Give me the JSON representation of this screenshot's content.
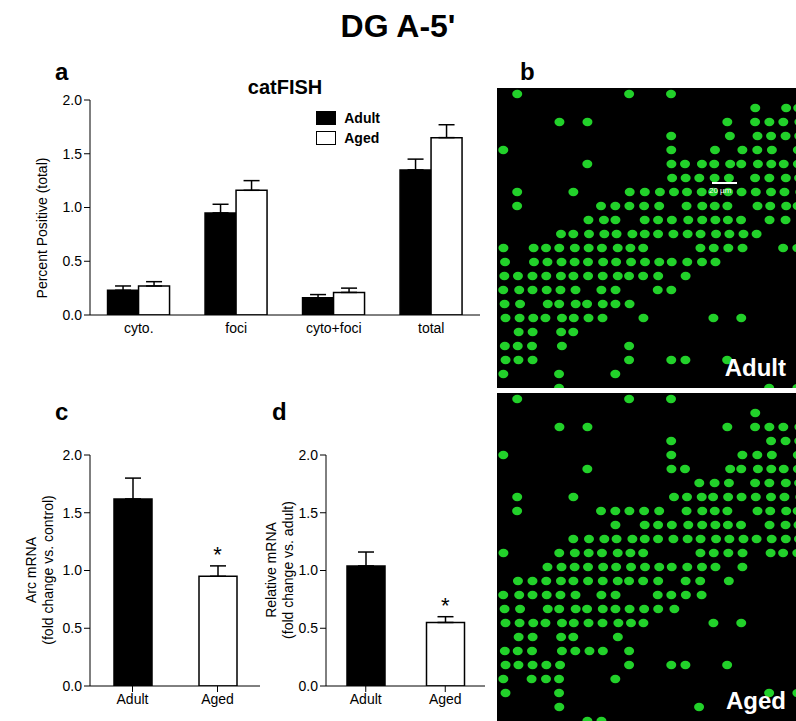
{
  "title": "DG A-5'",
  "chart_data": [
    {
      "panel": "a",
      "type": "bar",
      "title": "catFISH",
      "ylabel": "Percent Positive (total)",
      "categories": [
        "cyto.",
        "foci",
        "cyto+foci",
        "total"
      ],
      "series": [
        {
          "name": "Adult",
          "color": "#000000",
          "values": [
            0.23,
            0.95,
            0.16,
            1.35
          ],
          "errors": [
            0.04,
            0.08,
            0.03,
            0.1
          ]
        },
        {
          "name": "Aged",
          "color": "#ffffff",
          "values": [
            0.27,
            1.16,
            0.21,
            1.65
          ],
          "errors": [
            0.04,
            0.09,
            0.04,
            0.12
          ]
        }
      ],
      "ylim": [
        0,
        2
      ],
      "yticks": [
        {
          "value": 0,
          "label": "0.0"
        },
        {
          "value": 0.5,
          "label": "0.5"
        },
        {
          "value": 1,
          "label": "1.0"
        },
        {
          "value": 1.5,
          "label": "1.5"
        },
        {
          "value": 2,
          "label": "2.0"
        }
      ],
      "legend": "top right"
    },
    {
      "panel": "c",
      "type": "bar",
      "ylabel": "Arc mRNA\n(fold change vs. control)",
      "categories": [
        "Adult",
        "Aged"
      ],
      "values": [
        1.62,
        0.95
      ],
      "errors": [
        0.18,
        0.09
      ],
      "colors": [
        "#000000",
        "#ffffff"
      ],
      "ylim": [
        0,
        2
      ],
      "yticks": [
        {
          "value": 0,
          "label": "0.0"
        },
        {
          "value": 0.5,
          "label": "0.5"
        },
        {
          "value": 1,
          "label": "1.0"
        },
        {
          "value": 1.5,
          "label": "1.5"
        },
        {
          "value": 2,
          "label": "2.0"
        }
      ],
      "annotations": [
        {
          "category": "Aged",
          "text": "*"
        }
      ]
    },
    {
      "panel": "d",
      "type": "bar",
      "ylabel": "Relative mRNA\n(fold change vs. adult)",
      "categories": [
        "Adult",
        "Aged"
      ],
      "values": [
        1.04,
        0.55
      ],
      "errors": [
        0.12,
        0.05
      ],
      "colors": [
        "#000000",
        "#ffffff"
      ],
      "ylim": [
        0,
        2
      ],
      "yticks": [
        {
          "value": 0,
          "label": "0.0"
        },
        {
          "value": 0.5,
          "label": "0.5"
        },
        {
          "value": 1,
          "label": "1.0"
        },
        {
          "value": 1.5,
          "label": "1.5"
        },
        {
          "value": 2,
          "label": "2.0"
        }
      ],
      "annotations": [
        {
          "category": "Aged",
          "text": "*"
        }
      ]
    }
  ],
  "image_panels": {
    "panel": "b",
    "images": [
      {
        "label": "Adult",
        "scale_bar": "20 µm"
      },
      {
        "label": "Aged"
      }
    ]
  }
}
